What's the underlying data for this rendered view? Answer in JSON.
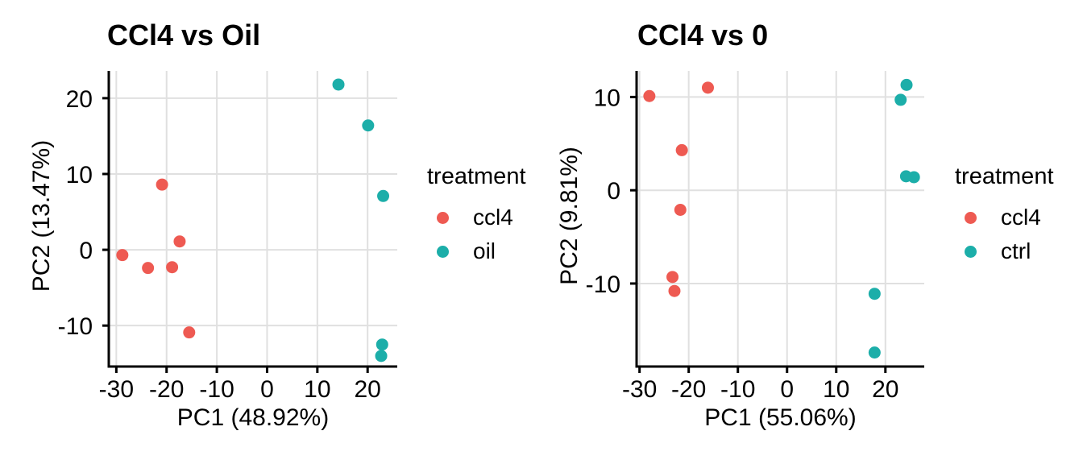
{
  "page": {
    "background": "#ffffff"
  },
  "colors": {
    "ccl4_red": "#EE5A52",
    "group_teal": "#1CAEA9",
    "gridline": "#E0E0E0",
    "axis_line": "#000000",
    "text": "#000000"
  },
  "chart_data": [
    {
      "type": "scatter",
      "title": "CCl4 vs Oil",
      "xlabel": "PC1 (48.92%)",
      "ylabel": "PC2 (13.47%)",
      "xlim": [
        -31.5,
        25.9
      ],
      "ylim": [
        -15.4,
        23.6
      ],
      "x_ticks": [
        -30,
        -20,
        -10,
        0,
        10,
        20
      ],
      "y_ticks": [
        -10,
        0,
        10,
        20
      ],
      "grid": true,
      "legend_title": "treatment",
      "legend_position": "right",
      "series": [
        {
          "name": "ccl4",
          "color": "#EE5A52",
          "points": [
            [
              -20.9,
              8.6
            ],
            [
              -17.4,
              1.1
            ],
            [
              -28.8,
              -0.7
            ],
            [
              -23.7,
              -2.4
            ],
            [
              -18.9,
              -2.3
            ],
            [
              -15.5,
              -10.9
            ]
          ]
        },
        {
          "name": "oil",
          "color": "#1CAEA9",
          "points": [
            [
              14.2,
              21.8
            ],
            [
              20.1,
              16.4
            ],
            [
              23.1,
              7.1
            ],
            [
              22.9,
              -12.5
            ],
            [
              22.7,
              -14.0
            ]
          ]
        }
      ]
    },
    {
      "type": "scatter",
      "title": "CCl4 vs 0",
      "xlabel": "PC1 (55.06%)",
      "ylabel": "PC2 (9.81%)",
      "xlim": [
        -30.6,
        27.9
      ],
      "ylim": [
        -18.9,
        12.8
      ],
      "x_ticks": [
        -30,
        -20,
        -10,
        0,
        10,
        20
      ],
      "y_ticks": [
        -10,
        0,
        10
      ],
      "grid": true,
      "legend_title": "treatment",
      "legend_position": "right",
      "series": [
        {
          "name": "ccl4",
          "color": "#EE5A52",
          "points": [
            [
              -28.0,
              10.1
            ],
            [
              -16.1,
              11.0
            ],
            [
              -21.4,
              4.3
            ],
            [
              -21.7,
              -2.1
            ],
            [
              -23.3,
              -9.3
            ],
            [
              -22.9,
              -10.8
            ]
          ]
        },
        {
          "name": "ctrl",
          "color": "#1CAEA9",
          "points": [
            [
              24.3,
              11.3
            ],
            [
              23.1,
              9.7
            ],
            [
              24.2,
              1.5
            ],
            [
              25.8,
              1.4
            ],
            [
              17.8,
              -11.1
            ],
            [
              17.8,
              -17.4
            ]
          ]
        }
      ]
    }
  ]
}
